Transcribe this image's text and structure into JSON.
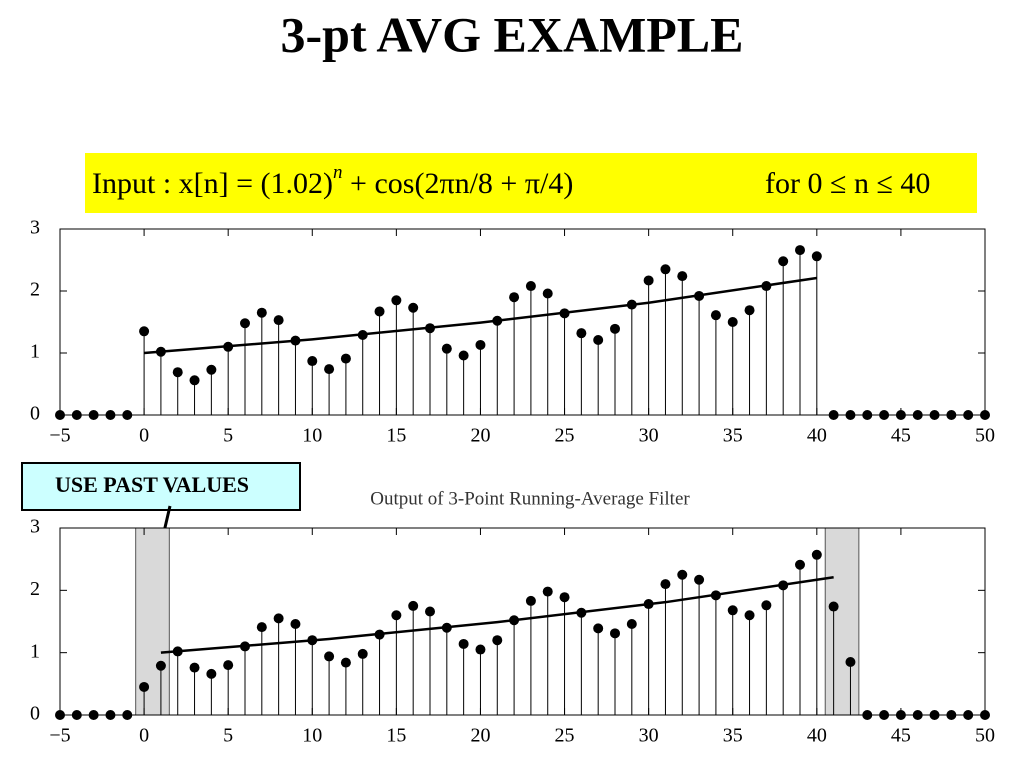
{
  "title": "3-pt AVG EXAMPLE",
  "annotation": "USE PAST VALUES",
  "chart_data": [
    {
      "type": "stem",
      "title_parts": [
        "Input : x[n] = (1.02)",
        "n",
        " + cos(2πn/8 + π/4)",
        "for 0 ≤ n ≤ 40"
      ],
      "x": [
        -5,
        -4,
        -3,
        -2,
        -1,
        0,
        1,
        2,
        3,
        4,
        5,
        6,
        7,
        8,
        9,
        10,
        11,
        12,
        13,
        14,
        15,
        16,
        17,
        18,
        19,
        20,
        21,
        22,
        23,
        24,
        25,
        26,
        27,
        28,
        29,
        30,
        31,
        32,
        33,
        34,
        35,
        36,
        37,
        38,
        39,
        40,
        41,
        42,
        43,
        44,
        45,
        46,
        47,
        48,
        49,
        50
      ],
      "values": [
        0,
        0,
        0,
        0,
        0,
        1.35,
        1.02,
        0.69,
        0.56,
        0.73,
        1.1,
        1.48,
        1.65,
        1.53,
        1.2,
        0.87,
        0.74,
        0.91,
        1.29,
        1.67,
        1.85,
        1.73,
        1.4,
        1.07,
        0.96,
        1.13,
        1.52,
        1.9,
        2.08,
        1.96,
        1.64,
        1.32,
        1.21,
        1.39,
        1.78,
        2.17,
        2.35,
        2.24,
        1.92,
        1.61,
        1.5,
        1.69,
        2.08,
        2.48,
        2.66,
        2.56,
        0,
        0,
        0,
        0,
        0,
        0,
        0,
        0,
        0,
        0
      ],
      "trend": {
        "x": [
          0,
          10,
          20,
          30,
          40
        ],
        "values": [
          1,
          1.22,
          1.49,
          1.81,
          2.21
        ]
      },
      "color": "#000000",
      "xlim": [
        -5,
        50
      ],
      "xticks": [
        {
          "value": -5,
          "label": "−5"
        },
        0,
        5,
        10,
        15,
        20,
        25,
        30,
        35,
        40,
        45,
        50
      ],
      "ylim": [
        0,
        3
      ],
      "yticks": [
        0,
        1,
        2,
        3
      ],
      "grid": false
    },
    {
      "type": "stem",
      "title": "Output of 3-Point Running-Average Filter",
      "x": [
        -5,
        -4,
        -3,
        -2,
        -1,
        0,
        1,
        2,
        3,
        4,
        5,
        6,
        7,
        8,
        9,
        10,
        11,
        12,
        13,
        14,
        15,
        16,
        17,
        18,
        19,
        20,
        21,
        22,
        23,
        24,
        25,
        26,
        27,
        28,
        29,
        30,
        31,
        32,
        33,
        34,
        35,
        36,
        37,
        38,
        39,
        40,
        41,
        42,
        43,
        44,
        45,
        46,
        47,
        48,
        49,
        50
      ],
      "values": [
        0,
        0,
        0,
        0,
        0,
        0.45,
        0.79,
        1.02,
        0.76,
        0.66,
        0.8,
        1.1,
        1.41,
        1.55,
        1.46,
        1.2,
        0.94,
        0.84,
        0.98,
        1.29,
        1.6,
        1.75,
        1.66,
        1.4,
        1.14,
        1.05,
        1.2,
        1.52,
        1.83,
        1.98,
        1.89,
        1.64,
        1.39,
        1.31,
        1.46,
        1.78,
        2.1,
        2.25,
        2.17,
        1.92,
        1.68,
        1.6,
        1.76,
        2.08,
        2.41,
        2.57,
        1.74,
        0.85,
        0,
        0,
        0,
        0,
        0,
        0,
        0,
        0
      ],
      "trend": {
        "x": [
          1,
          11,
          21,
          31,
          41
        ],
        "values": [
          1,
          1.22,
          1.49,
          1.81,
          2.21
        ]
      },
      "shaded": [
        [
          -0.5,
          1.5
        ],
        [
          40.5,
          42.5
        ]
      ],
      "color": "#000000",
      "xlim": [
        -5,
        50
      ],
      "xticks": [
        {
          "value": -5,
          "label": "−5"
        },
        0,
        5,
        10,
        15,
        20,
        25,
        30,
        35,
        40,
        45,
        50
      ],
      "ylim": [
        0,
        3
      ],
      "yticks": [
        0,
        1,
        2,
        3
      ],
      "grid": false
    }
  ]
}
